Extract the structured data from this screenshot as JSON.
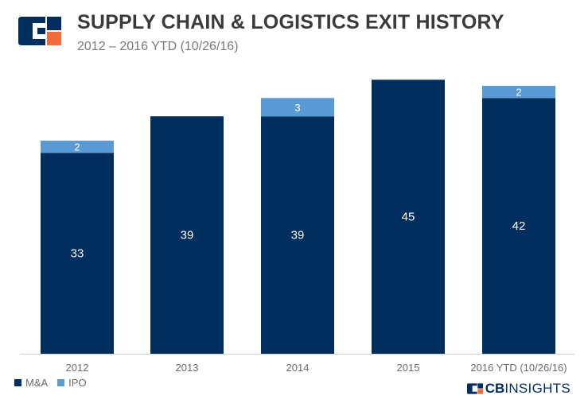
{
  "header": {
    "title": "SUPPLY CHAIN & LOGISTICS EXIT HISTORY",
    "subtitle": "2012 – 2016 YTD (10/26/16)"
  },
  "brand": {
    "part1": "CB",
    "part2": "INSIGHTS"
  },
  "colors": {
    "ma": "#002f5f",
    "ipo": "#5b9bd5",
    "logo_orange": "#f26b3a",
    "axis": "#d0d0d0"
  },
  "chart_data": {
    "type": "bar",
    "stacked": true,
    "categories": [
      "2012",
      "2013",
      "2014",
      "2015",
      "2016 YTD (10/26/16)"
    ],
    "series": [
      {
        "name": "M&A",
        "values": [
          33,
          39,
          39,
          45,
          42
        ],
        "color": "#002f5f"
      },
      {
        "name": "IPO",
        "values": [
          2,
          0,
          3,
          0,
          2
        ],
        "color": "#5b9bd5"
      }
    ],
    "ylim": [
      0,
      47
    ],
    "grid": false,
    "legend": "bottom-left"
  }
}
